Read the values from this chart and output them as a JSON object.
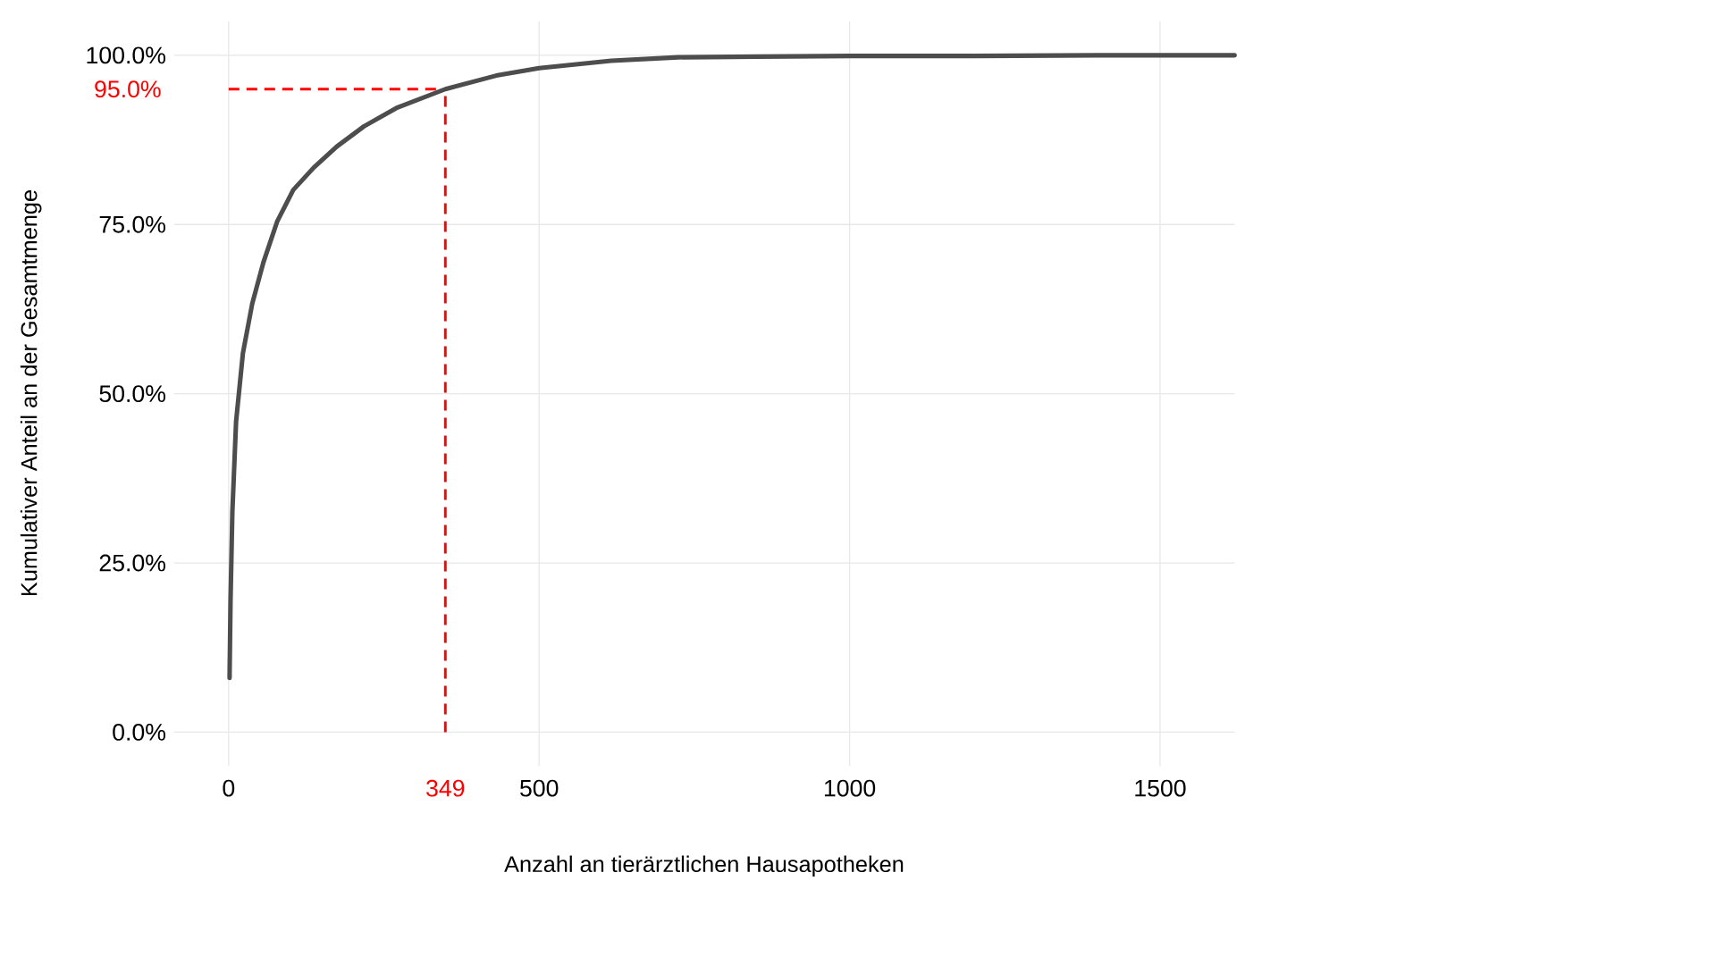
{
  "chart_data": {
    "type": "line",
    "xlabel": "Anzahl an tierärztlichen Hausapotheken",
    "ylabel": "Kumulativer Anteil an der Gesamtmenge",
    "x": [
      1.5,
      3,
      6,
      12,
      23,
      38,
      56,
      78,
      104,
      137,
      174,
      218,
      270,
      349,
      431,
      500,
      616,
      724,
      850,
      1000,
      1200,
      1400,
      1620
    ],
    "series": [
      {
        "color": "#4d4d4d",
        "values": [
          8.0,
          19.1,
          32.5,
          45.9,
          56,
          63.3,
          69.4,
          75.4,
          80.1,
          83.4,
          86.5,
          89.5,
          92.2,
          95,
          97.0,
          98.1,
          99.2,
          99.7,
          99.8,
          99.9,
          99.9,
          100,
          100
        ]
      }
    ],
    "xlim": [
      -88,
      1620
    ],
    "ylim": [
      -5,
      105
    ],
    "xticks": [
      0,
      500,
      1000,
      1500
    ],
    "yticks": [
      {
        "value": 0,
        "label": "0.0%"
      },
      {
        "value": 25,
        "label": "25.0%"
      },
      {
        "value": 50,
        "label": "50.0%"
      },
      {
        "value": 75,
        "label": "75.0%"
      },
      {
        "value": 100,
        "label": "100.0%"
      }
    ],
    "ref_lines": [
      {
        "axis": "y",
        "value": 95,
        "label": "95.0%",
        "color": "#ff0000",
        "line_style": "dashed"
      },
      {
        "axis": "x",
        "value": 349,
        "label": "349",
        "color": "#ff0000",
        "line_style": "dashed"
      }
    ],
    "grid": true,
    "legend": false,
    "marker": "none",
    "line_style": "solid"
  }
}
